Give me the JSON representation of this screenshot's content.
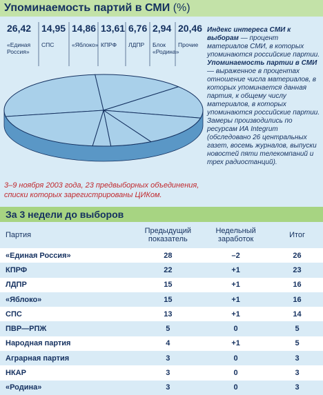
{
  "chart_data": {
    "type": "pie",
    "title": "Упоминаемость партий в СМИ",
    "unit": "(%)",
    "categories": [
      "«Единая Россия»",
      "СПС",
      "«Яблоко»",
      "КПРФ",
      "ЛДПР",
      "Блок «Родина»",
      "Прочие"
    ],
    "values": [
      26.42,
      14.95,
      14.86,
      13.61,
      6.76,
      2.94,
      20.46
    ],
    "value_labels": [
      "26,42",
      "14,95",
      "14,86",
      "13,61",
      "6,76",
      "2,94",
      "20,46"
    ],
    "color": "#a9d0ea"
  },
  "notes": [
    {
      "runs": [
        {
          "text": "Индекс интереса СМИ к выборам",
          "bold": true
        },
        {
          "text": " — процент материалов СМИ, в которых упоминаются российские партии.",
          "bold": false
        }
      ]
    },
    {
      "runs": [
        {
          "text": "Упоминаемость партии в СМИ",
          "bold": true
        },
        {
          "text": " — выраженное в процентах отношение числа материалов, в которых упоминается данная партия, к общему числу материалов, в которых упоминаются российские партии.",
          "bold": false
        }
      ]
    },
    {
      "runs": [
        {
          "text": "Замеры производились по ресурсам ИА Integrum (обследовано 26 центральных газет, восемь журналов, выпуски новостей пяти телекомпаний и трех радиостанций).",
          "bold": false
        }
      ]
    }
  ],
  "caption": "3–9 ноября 2003 года, 23 предвыборных объединения, списки которых зарегистрированы ЦИКом.",
  "table": {
    "title": "За 3 недели до выборов",
    "header": [
      "Партия",
      "Предыдущий показатель",
      "Недельный заработок",
      "Итог"
    ],
    "rows": [
      [
        "«Единая Россия»",
        "28",
        "–2",
        "26"
      ],
      [
        "КПРФ",
        "22",
        "+1",
        "23"
      ],
      [
        "ЛДПР",
        "15",
        "+1",
        "16"
      ],
      [
        "«Яблоко»",
        "15",
        "+1",
        "16"
      ],
      [
        "СПС",
        "13",
        "+1",
        "14"
      ],
      [
        "ПВР—РПЖ",
        "5",
        "0",
        "5"
      ],
      [
        "Народная партия",
        "4",
        "+1",
        "5"
      ],
      [
        "Аграрная партия",
        "3",
        "0",
        "3"
      ],
      [
        "НКАР",
        "3",
        "0",
        "3"
      ],
      [
        "«Родина»",
        "3",
        "0",
        "3"
      ]
    ]
  }
}
